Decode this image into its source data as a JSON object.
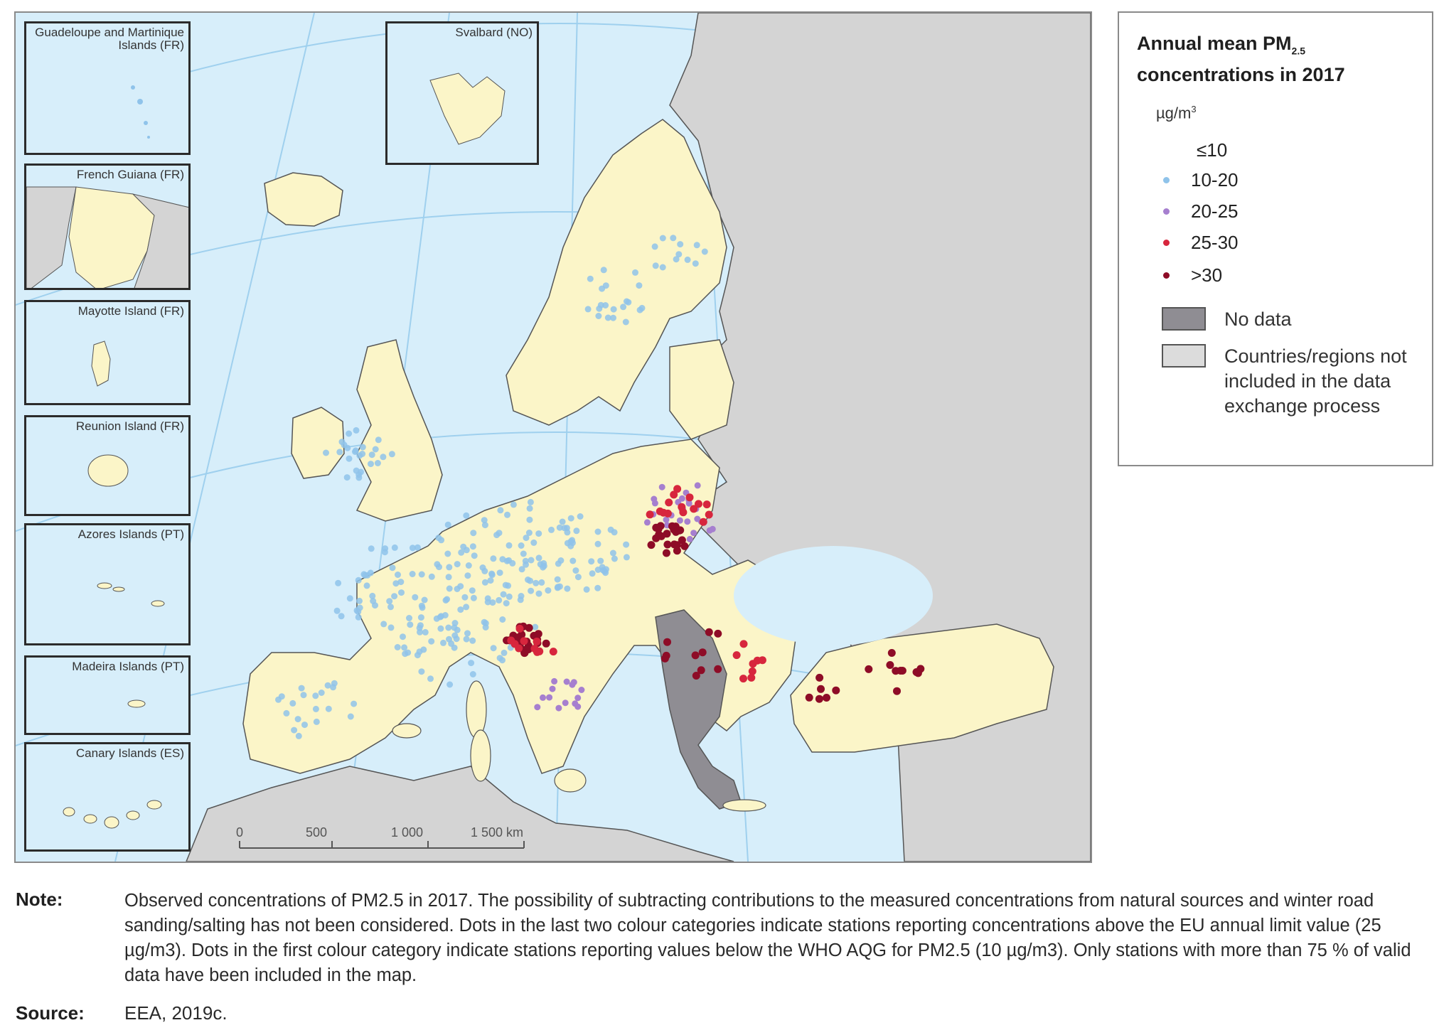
{
  "insets": [
    {
      "name": "guadeloupe-martinique-inset",
      "label": "Guadeloupe and Martinique Islands (FR)"
    },
    {
      "name": "french-guiana-inset",
      "label": "French Guiana (FR)"
    },
    {
      "name": "mayotte-inset",
      "label": "Mayotte Island (FR)"
    },
    {
      "name": "reunion-inset",
      "label": "Reunion Island (FR)"
    },
    {
      "name": "azores-inset",
      "label": "Azores Islands (PT)"
    },
    {
      "name": "madeira-inset",
      "label": "Madeira Islands (PT)"
    },
    {
      "name": "canary-inset",
      "label": "Canary Islands (ES)"
    },
    {
      "name": "svalbard-inset",
      "label": "Svalbard (NO)"
    }
  ],
  "scale_bar": {
    "ticks": [
      "0",
      "500",
      "1 000",
      "1 500 km"
    ]
  },
  "legend": {
    "title_line1": "Annual mean PM",
    "title_sub": "2.5",
    "title_line2": "concentrations in 2017",
    "unit_main": "µg/m",
    "unit_sup": "3",
    "classes": [
      {
        "label": "≤10",
        "color": "#ffffff"
      },
      {
        "label": "10-20",
        "color": "#8fc3ea"
      },
      {
        "label": "20-25",
        "color": "#a67fcf"
      },
      {
        "label": "25-30",
        "color": "#d7263d"
      },
      {
        "label": ">30",
        "color": "#8e0c27"
      }
    ],
    "no_data": {
      "label": "No data",
      "color": "#8f8d93"
    },
    "not_included": {
      "label": "Countries/regions not included in the data exchange process",
      "color": "#dcdcdc"
    }
  },
  "colors": {
    "sea": "#d7eefa",
    "included_land": "#fbf5c8",
    "other_land": "#d4d4d4",
    "no_data_land": "#8f8d93",
    "border": "#555555"
  },
  "note": {
    "label": "Note:",
    "text": "Observed concentrations of PM2.5 in 2017. The possibility of subtracting contributions to the measured concentrations from natural sources and winter road sanding/salting has not been considered. Dots in the last two colour categories indicate stations reporting concentrations above the EU annual limit value (25 µg/m3). Dots in the first colour category indicate stations reporting values below the WHO AQG for PM2.5 (10 µg/m3). Only stations with more than 75 % of valid data have been included in the map."
  },
  "source": {
    "label": "Source:",
    "text": "EEA, 2019c."
  }
}
